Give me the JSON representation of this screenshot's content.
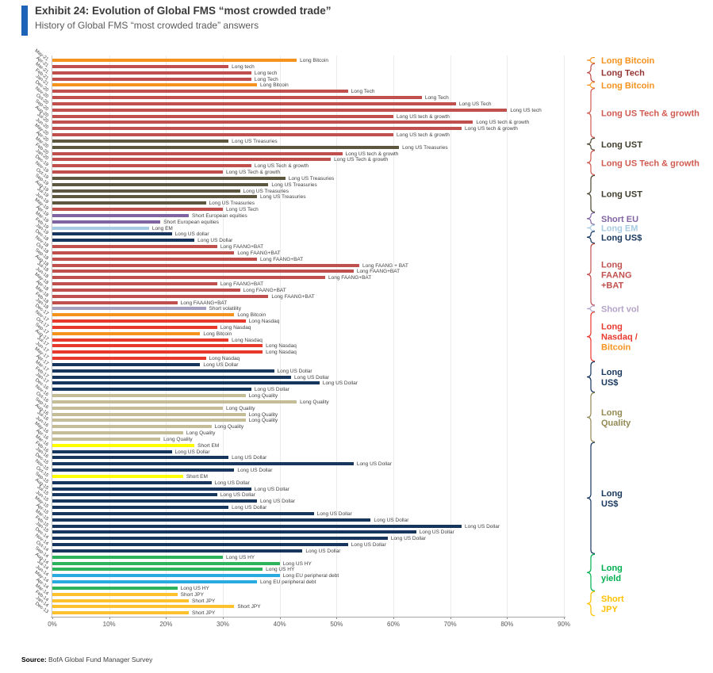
{
  "header": {
    "title": "Exhibit 24: Evolution of Global FMS “most crowded trade”",
    "subtitle": "History of Global FMS “most crowded trade” answers"
  },
  "source": {
    "label": "Source:",
    "text": "BofA Global Fund Manager Survey"
  },
  "colors": {
    "accent_blue": "#1D63B8",
    "btc": "#F6921E",
    "tech": "#C0504D",
    "ust": "#5C573E",
    "eu": "#8064A2",
    "em": "#A6CBE3",
    "usd": "#17365D",
    "faang": "#C0504D",
    "vol": "#A6A0C0",
    "nasdaq": "#E8392D",
    "qual": "#C4BD97",
    "sem": "#FFFF00",
    "jpy": "#FDC22D",
    "hy": "#2CB35B",
    "eup": "#29ABE2"
  },
  "chart_data": {
    "type": "bar",
    "orientation": "horizontal",
    "xlabel": "",
    "ylabel": "",
    "xlim": [
      0,
      90
    ],
    "x_ticks": [
      "0%",
      "10%",
      "20%",
      "30%",
      "40%",
      "50%",
      "60%",
      "70%",
      "80%",
      "90%"
    ],
    "grid": true,
    "rows": [
      {
        "month": "May-21",
        "trade": "Long Bitcoin",
        "value": 43,
        "color": "btc"
      },
      {
        "month": "Apr-21",
        "trade": "Long tech",
        "value": 31,
        "color": "tech"
      },
      {
        "month": "Mar-21",
        "trade": "Long tech",
        "value": 35,
        "color": "tech"
      },
      {
        "month": "Feb-21",
        "trade": "Long Tech",
        "value": 35,
        "color": "tech"
      },
      {
        "month": "Jan-21",
        "trade": "Long Bitcoin",
        "value": 36,
        "color": "btc"
      },
      {
        "month": "Dec-20",
        "trade": "Long Tech",
        "value": 52,
        "color": "tech"
      },
      {
        "month": "Nov-20",
        "trade": "Long Tech",
        "value": 65,
        "color": "tech"
      },
      {
        "month": "Oct-20",
        "trade": "Long US Tech",
        "value": 71,
        "color": "tech"
      },
      {
        "month": "Sep-20",
        "trade": "Long US tech",
        "value": 80,
        "color": "tech"
      },
      {
        "month": "Aug-20",
        "trade": "Long US tech & growth",
        "value": 60,
        "color": "tech"
      },
      {
        "month": "Jul-20",
        "trade": "Long US tech & growth",
        "value": 74,
        "color": "tech"
      },
      {
        "month": "Jun-20",
        "trade": "Long US tech & growth",
        "value": 72,
        "color": "tech"
      },
      {
        "month": "May-20",
        "trade": "Long US tech & growth",
        "value": 60,
        "color": "tech"
      },
      {
        "month": "Apr-20",
        "trade": "Long US Treasuries",
        "value": 31,
        "color": "ust"
      },
      {
        "month": "Mar-20",
        "trade": "Long US Treasuries",
        "value": 61,
        "color": "ust"
      },
      {
        "month": "Feb-20",
        "trade": "Long US tech & growth",
        "value": 51,
        "color": "tech"
      },
      {
        "month": "Jan-20",
        "trade": "Long US Tech & growth",
        "value": 49,
        "color": "tech"
      },
      {
        "month": "Dec-19",
        "trade": "Long US Tech & growth",
        "value": 35,
        "color": "tech"
      },
      {
        "month": "Nov-19",
        "trade": "Long US Tech & growth",
        "value": 30,
        "color": "tech"
      },
      {
        "month": "Oct-19",
        "trade": "Long US Treasuries",
        "value": 41,
        "color": "ust"
      },
      {
        "month": "Sep-19",
        "trade": "Long US Treasuries",
        "value": 38,
        "color": "ust"
      },
      {
        "month": "Aug-19",
        "trade": "Long US Treasuries",
        "value": 33,
        "color": "ust"
      },
      {
        "month": "Jul-19",
        "trade": "Long US Treasuries",
        "value": 36,
        "color": "ust"
      },
      {
        "month": "Jun-19",
        "trade": "Long US Treasuries",
        "value": 27,
        "color": "ust"
      },
      {
        "month": "May-19",
        "trade": "Long US Tech",
        "value": 30,
        "color": "tech"
      },
      {
        "month": "Apr-19",
        "trade": "Short European equities",
        "value": 24,
        "color": "eu"
      },
      {
        "month": "Mar-19",
        "trade": "Short European equities",
        "value": 19,
        "color": "eu"
      },
      {
        "month": "Feb-19",
        "trade": "Long EM",
        "value": 17,
        "color": "em"
      },
      {
        "month": "Jan-19",
        "trade": "Long US dollar",
        "value": 21,
        "color": "usd"
      },
      {
        "month": "Dec-18",
        "trade": "Long US Dollar",
        "value": 25,
        "color": "usd"
      },
      {
        "month": "Nov-18",
        "trade": "Long FAANG+BAT",
        "value": 29,
        "color": "faang"
      },
      {
        "month": "Oct-18",
        "trade": "Long FAANG+BAT",
        "value": 32,
        "color": "faang"
      },
      {
        "month": "Sep-18",
        "trade": "Long FAANG+BAT",
        "value": 36,
        "color": "faang"
      },
      {
        "month": "Aug-18",
        "trade": "Long FAANG + BAT",
        "value": 54,
        "color": "faang"
      },
      {
        "month": "Jul-18",
        "trade": "Long FAANG+BAT",
        "value": 53,
        "color": "faang"
      },
      {
        "month": "Jun-18",
        "trade": "Long FAANG+BAT",
        "value": 48,
        "color": "faang"
      },
      {
        "month": "May-18",
        "trade": "Long FAANG+BAT",
        "value": 29,
        "color": "faang"
      },
      {
        "month": "Apr-18",
        "trade": "Long FAANG+BAT",
        "value": 33,
        "color": "faang"
      },
      {
        "month": "Mar-18",
        "trade": "Long FAANG+BAT",
        "value": 38,
        "color": "faang"
      },
      {
        "month": "Feb-18",
        "trade": "Long FAAANG+BAT",
        "value": 22,
        "color": "faang"
      },
      {
        "month": "Jan-18",
        "trade": "Short volatility",
        "value": 27,
        "color": "vol"
      },
      {
        "month": "Dec-17",
        "trade": "Long Bitcoin",
        "value": 32,
        "color": "btc"
      },
      {
        "month": "Nov-17",
        "trade": "Long Nasdaq",
        "value": 34,
        "color": "nasdaq"
      },
      {
        "month": "Oct-17",
        "trade": "Long Nasdaq",
        "value": 29,
        "color": "nasdaq"
      },
      {
        "month": "Sep-17",
        "trade": "Long Bitcoin",
        "value": 26,
        "color": "btc"
      },
      {
        "month": "Aug-17",
        "trade": "Long Nasdaq",
        "value": 31,
        "color": "nasdaq"
      },
      {
        "month": "Jul-17",
        "trade": "Long Nasdaq",
        "value": 37,
        "color": "nasdaq"
      },
      {
        "month": "Jun-17",
        "trade": "Long Nasdaq",
        "value": 37,
        "color": "nasdaq"
      },
      {
        "month": "May-17",
        "trade": "Long Nasdaq",
        "value": 27,
        "color": "nasdaq"
      },
      {
        "month": "Apr-17",
        "trade": "Long US Dollar",
        "value": 26,
        "color": "usd"
      },
      {
        "month": "Mar-17",
        "trade": "Long US Dollar",
        "value": 39,
        "color": "usd"
      },
      {
        "month": "Feb-17",
        "trade": "Long US Dollar",
        "value": 42,
        "color": "usd"
      },
      {
        "month": "Jan-17",
        "trade": "Long US Dollar",
        "value": 47,
        "color": "usd"
      },
      {
        "month": "Dec-16",
        "trade": "Long US Dollar",
        "value": 35,
        "color": "usd"
      },
      {
        "month": "Nov-16",
        "trade": "Long Quality",
        "value": 34,
        "color": "qual"
      },
      {
        "month": "Oct-16",
        "trade": "Long Quality",
        "value": 43,
        "color": "qual"
      },
      {
        "month": "Sep-16",
        "trade": "Long Quality",
        "value": 30,
        "color": "qual"
      },
      {
        "month": "Aug-16",
        "trade": "Long Quality",
        "value": 34,
        "color": "qual"
      },
      {
        "month": "Jul-16",
        "trade": "Long Quality",
        "value": 34,
        "color": "qual"
      },
      {
        "month": "Jun-16",
        "trade": "Long Quality",
        "value": 28,
        "color": "qual"
      },
      {
        "month": "May-16",
        "trade": "Long Quality",
        "value": 23,
        "color": "qual"
      },
      {
        "month": "Apr-16",
        "trade": "Long Quality",
        "value": 19,
        "color": "qual"
      },
      {
        "month": "Mar-16",
        "trade": "Short EM",
        "value": 25,
        "color": "sem"
      },
      {
        "month": "Feb-16",
        "trade": "Long US Dollar",
        "value": 21,
        "color": "usd"
      },
      {
        "month": "Jan-16",
        "trade": "Long US Dollar",
        "value": 31,
        "color": "usd"
      },
      {
        "month": "Dec-15",
        "trade": "Long US Dollar",
        "value": 53,
        "color": "usd"
      },
      {
        "month": "Nov-15",
        "trade": "Long US Dollar",
        "value": 32,
        "color": "usd"
      },
      {
        "month": "Oct-15",
        "trade": "Short EM",
        "value": 23,
        "color": "sem"
      },
      {
        "month": "Sep-15",
        "trade": "Long US Dollar",
        "value": 28,
        "color": "usd"
      },
      {
        "month": "Aug-15",
        "trade": "Long US Dollar",
        "value": 35,
        "color": "usd"
      },
      {
        "month": "Jul-15",
        "trade": "Long US Dollar",
        "value": 29,
        "color": "usd"
      },
      {
        "month": "Jun-15",
        "trade": "Long US Dollar",
        "value": 36,
        "color": "usd"
      },
      {
        "month": "May-15",
        "trade": "Long US Dollar",
        "value": 31,
        "color": "usd"
      },
      {
        "month": "Apr-15",
        "trade": "Long US Dollar",
        "value": 46,
        "color": "usd"
      },
      {
        "month": "Mar-15",
        "trade": "Long US Dollar",
        "value": 56,
        "color": "usd"
      },
      {
        "month": "Feb-15",
        "trade": "Long US Dollar",
        "value": 72,
        "color": "usd"
      },
      {
        "month": "Jan-15",
        "trade": "Long US Dollar",
        "value": 64,
        "color": "usd"
      },
      {
        "month": "Dec-14",
        "trade": "Long US Dollar",
        "value": 59,
        "color": "usd"
      },
      {
        "month": "Nov-14",
        "trade": "Long US Dollar",
        "value": 52,
        "color": "usd"
      },
      {
        "month": "Oct-14",
        "trade": "Long US Dollar",
        "value": 44,
        "color": "usd"
      },
      {
        "month": "Sep-14",
        "trade": "Long US HY",
        "value": 30,
        "color": "hy"
      },
      {
        "month": "Aug-14",
        "trade": "Long US HY",
        "value": 40,
        "color": "hy"
      },
      {
        "month": "Jul-14",
        "trade": "Long US HY",
        "value": 37,
        "color": "hy"
      },
      {
        "month": "Jun-14",
        "trade": "Long EU peripheral debt",
        "value": 40,
        "color": "eup"
      },
      {
        "month": "May-14",
        "trade": "Long EU peripheral debt",
        "value": 36,
        "color": "eup"
      },
      {
        "month": "Apr-14",
        "trade": "Long US HY",
        "value": 22,
        "color": "hy"
      },
      {
        "month": "Mar-14",
        "trade": "Short JPY",
        "value": 22,
        "color": "jpy"
      },
      {
        "month": "Feb-14",
        "trade": "Short JPY",
        "value": 24,
        "color": "jpy"
      },
      {
        "month": "Jan-14",
        "trade": "Short JPY",
        "value": 32,
        "color": "jpy"
      },
      {
        "month": "Dec-13",
        "trade": "Short JPY",
        "value": 24,
        "color": "jpy"
      }
    ],
    "legend": [
      {
        "row_start": 1,
        "row_end": 1,
        "brace_color": "#F6921E",
        "lines": [
          {
            "t": "Long Bitcoin",
            "c": "#F6921E"
          }
        ]
      },
      {
        "row_start": 2,
        "row_end": 4,
        "brace_color": "#C0504D",
        "lines": [
          {
            "t": "Long Tech",
            "c": "#953735"
          }
        ]
      },
      {
        "row_start": 5,
        "row_end": 5,
        "brace_color": "#F6921E",
        "lines": [
          {
            "t": "Long Bitcoin",
            "c": "#F6921E"
          }
        ]
      },
      {
        "row_start": 6,
        "row_end": 13,
        "brace_color": "#D05A50",
        "lines": [
          {
            "t": "Long US Tech & growth",
            "c": "#D05A50"
          }
        ]
      },
      {
        "row_start": 14,
        "row_end": 15,
        "brace_color": "#4A4631",
        "lines": [
          {
            "t": "Long UST",
            "c": "#3F3C2B"
          }
        ]
      },
      {
        "row_start": 16,
        "row_end": 19,
        "brace_color": "#D05A50",
        "lines": [
          {
            "t": "Long US Tech & growth",
            "c": "#D05A50"
          }
        ]
      },
      {
        "row_start": 20,
        "row_end": 25,
        "brace_color": "#4A4631",
        "lines": [
          {
            "t": "Long UST",
            "c": "#3F3C2B"
          }
        ]
      },
      {
        "row_start": 26,
        "row_end": 27,
        "brace_color": "#8064A2",
        "lines": [
          {
            "t": "Short EU",
            "c": "#8064A2"
          }
        ]
      },
      {
        "row_start": 28,
        "row_end": 28,
        "brace_color": "#A6CBE3",
        "lines": [
          {
            "t": "Long EM",
            "c": "#A6CBE3"
          }
        ]
      },
      {
        "row_start": 29,
        "row_end": 30,
        "brace_color": "#17365D",
        "lines": [
          {
            "t": "Long US$",
            "c": "#17365D"
          }
        ]
      },
      {
        "row_start": 31,
        "row_end": 40,
        "brace_color": "#C0504D",
        "lines": [
          {
            "t": "Long",
            "c": "#C0504D"
          },
          {
            "t": "FAANG",
            "c": "#C0504D"
          },
          {
            "t": "+BAT",
            "c": "#C0504D"
          }
        ]
      },
      {
        "row_start": 41,
        "row_end": 41,
        "brace_color": "#B3A2C7",
        "lines": [
          {
            "t": "Short vol",
            "c": "#B3A2C7"
          }
        ]
      },
      {
        "row_start": 42,
        "row_end": 49,
        "brace_color": "#E8392D",
        "lines": [
          {
            "t": "Long",
            "c": "#E8392D"
          },
          {
            "t": "Nasdaq /",
            "c": "#E8392D"
          },
          {
            "t": "Bitcoin",
            "c": "#F6921E"
          }
        ]
      },
      {
        "row_start": 50,
        "row_end": 54,
        "brace_color": "#17365D",
        "lines": [
          {
            "t": "Long",
            "c": "#17365D"
          },
          {
            "t": "US$",
            "c": "#17365D"
          }
        ]
      },
      {
        "row_start": 55,
        "row_end": 62,
        "brace_color": "#948A54",
        "lines": [
          {
            "t": "Long",
            "c": "#948A54"
          },
          {
            "t": "Quality",
            "c": "#948A54"
          }
        ]
      },
      {
        "row_start": 63,
        "row_end": 80,
        "brace_color": "#17365D",
        "lines": [
          {
            "t": "Long",
            "c": "#17365D"
          },
          {
            "t": "US$",
            "c": "#17365D"
          }
        ]
      },
      {
        "row_start": 81,
        "row_end": 86,
        "brace_color": "#00B050",
        "lines": [
          {
            "t": "Long",
            "c": "#00B050"
          },
          {
            "t": "yield",
            "c": "#00B050"
          }
        ]
      },
      {
        "row_start": 87,
        "row_end": 90,
        "brace_color": "#FFC000",
        "lines": [
          {
            "t": "Short",
            "c": "#FFC000"
          },
          {
            "t": "JPY",
            "c": "#FFC000"
          }
        ]
      }
    ]
  }
}
